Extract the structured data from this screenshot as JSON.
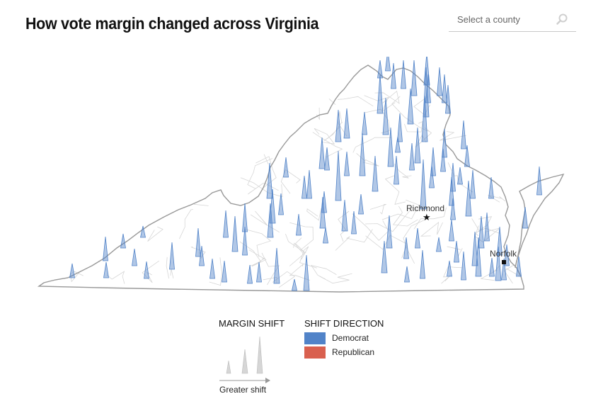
{
  "header": {
    "title": "How vote margin changed across Virginia"
  },
  "search": {
    "placeholder": "Select a county",
    "icon": "search-icon"
  },
  "map": {
    "state": "Virginia",
    "cities": [
      {
        "name": "Richmond",
        "marker": "star"
      },
      {
        "name": "Norfolk",
        "marker": "square"
      }
    ],
    "colors": {
      "democrat": "#5183c8",
      "republican": "#d9604f",
      "border": "#999999",
      "county_line": "#d6d6d6"
    }
  },
  "legend": {
    "margin_shift_title": "MARGIN SHIFT",
    "margin_shift_caption": "Greater shift",
    "shift_direction_title": "SHIFT DIRECTION",
    "directions": [
      {
        "label": "Democrat",
        "color": "#5183c8"
      },
      {
        "label": "Republican",
        "color": "#d9604f"
      }
    ]
  }
}
